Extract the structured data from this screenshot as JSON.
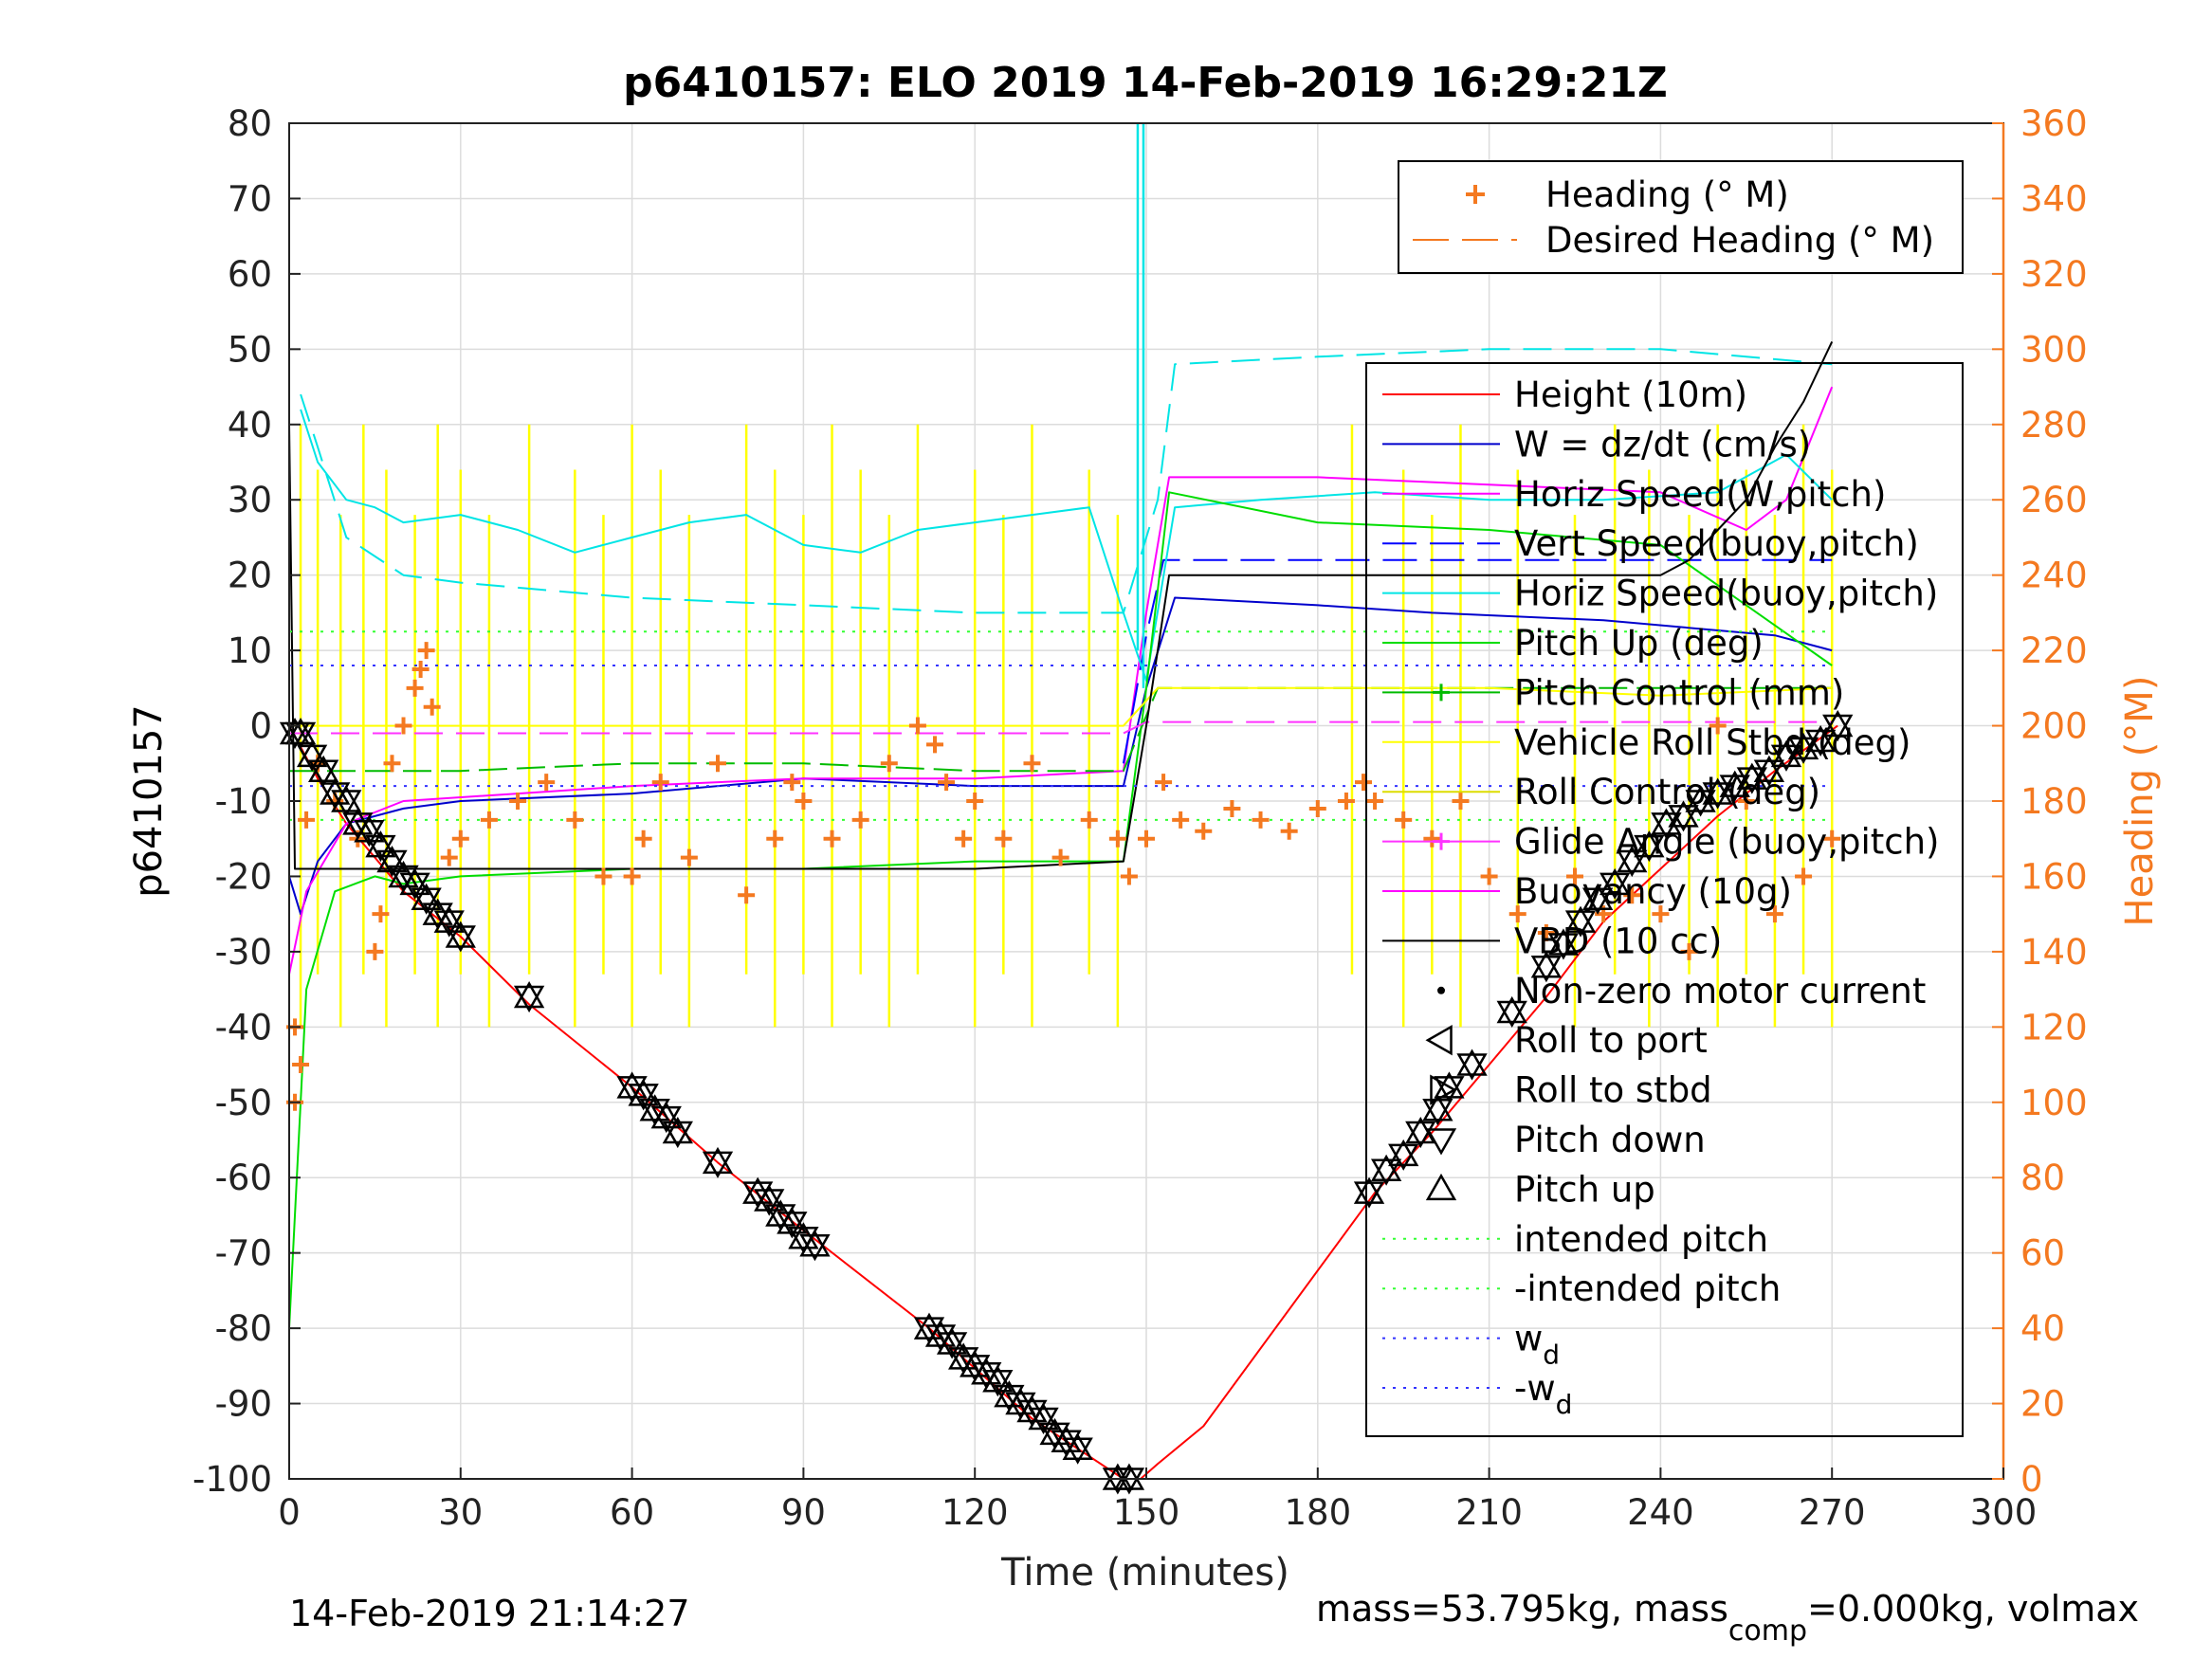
{
  "chart_data": {
    "type": "line",
    "title": "p6410157: ELO 2019 14-Feb-2019 16:29:21Z",
    "xlabel": "Time (minutes)",
    "ylabel": "p6410157",
    "y2label": "Heading (°M)",
    "xlim": [
      0,
      300
    ],
    "ylim": [
      -100,
      80
    ],
    "y2lim": [
      0,
      360
    ],
    "xticks": [
      "0",
      "30",
      "60",
      "90",
      "120",
      "150",
      "180",
      "210",
      "240",
      "270",
      "300"
    ],
    "yticks": [
      "80",
      "70",
      "60",
      "50",
      "40",
      "30",
      "20",
      "10",
      "0",
      "-10",
      "-20",
      "-30",
      "-40",
      "-50",
      "-60",
      "-70",
      "-80",
      "-90",
      "-100"
    ],
    "y2ticks": [
      "360",
      "340",
      "320",
      "300",
      "280",
      "260",
      "240",
      "220",
      "200",
      "180",
      "160",
      "140",
      "120",
      "100",
      "80",
      "60",
      "40",
      "20",
      "0"
    ],
    "grid": true,
    "colors": {
      "height": "#ff0000",
      "w": "#0000cc",
      "horiz_w": "#ff00ff",
      "vert_buoy": "#0000ff",
      "horiz_buoy": "#00e5e5",
      "pitch_up": "#00dd00",
      "pitch_control": "#00bb00",
      "roll": "#ffff00",
      "roll_control": "#dddd00",
      "glide": "#ff33ff",
      "buoyancy": "#ff00ff",
      "vbd": "#000000",
      "heading": "#f47920",
      "intended": "#33ff33",
      "wd": "#3333ff"
    },
    "legend_right": [
      {
        "name": "Heading (° M)"
      },
      {
        "name": "Desired Heading (° M)"
      }
    ],
    "legend_main": [
      {
        "name": "Height (10m)"
      },
      {
        "name": "W = dz/dt (cm/s)"
      },
      {
        "name": "Horiz Speed(W,pitch)"
      },
      {
        "name": "Vert Speed(buoy,pitch)"
      },
      {
        "name": "Horiz Speed(buoy,pitch)"
      },
      {
        "name": "Pitch Up (deg)"
      },
      {
        "name": "Pitch Control (mm)"
      },
      {
        "name": "Vehicle Roll Stbd (deg)"
      },
      {
        "name": "Roll Control (deg)"
      },
      {
        "name": "Glide Angle (buoy,pitch)"
      },
      {
        "name": "Buoyancy (10g)"
      },
      {
        "name": "VBD (10 cc)"
      },
      {
        "name": "Non-zero motor current"
      },
      {
        "name": "Roll to port"
      },
      {
        "name": "Roll to stbd"
      },
      {
        "name": "Pitch down"
      },
      {
        "name": "Pitch up"
      },
      {
        "name": "intended pitch"
      },
      {
        "name": "-intended pitch"
      },
      {
        "name": "w",
        "sub": "d"
      },
      {
        "name": "-w",
        "sub": "d"
      }
    ],
    "series": [
      {
        "name": "Height (10m)",
        "x": [
          0,
          5,
          10,
          20,
          30,
          42,
          60,
          75,
          90,
          112,
          130,
          146,
          149,
          152,
          160,
          190,
          200,
          210,
          220,
          230,
          240,
          250,
          260,
          271
        ],
        "y": [
          0,
          -7,
          -13,
          -22,
          -28,
          -37,
          -48,
          -58,
          -67,
          -80,
          -92,
          -100,
          -100,
          -98,
          -93,
          -62,
          -54,
          -45,
          -36,
          -26,
          -19,
          -12,
          -6,
          0
        ]
      },
      {
        "name": "W = dz/dt (cm/s)",
        "x": [
          0,
          2,
          5,
          10,
          20,
          30,
          60,
          90,
          120,
          146,
          150,
          155,
          180,
          200,
          230,
          260,
          270
        ],
        "y": [
          -20,
          -25,
          -18,
          -13,
          -11,
          -10,
          -9,
          -7,
          -8,
          -8,
          5,
          17,
          16,
          15,
          14,
          12,
          10
        ]
      },
      {
        "name": "Horiz Speed(W,pitch)",
        "x": [
          0,
          3,
          10,
          20,
          40,
          60,
          90,
          120,
          146,
          150,
          154,
          180,
          210,
          240,
          255,
          262,
          270
        ],
        "y": [
          -33,
          -22,
          -13,
          -10,
          -9,
          -8,
          -7,
          -7,
          -6,
          15,
          33,
          33,
          32,
          31,
          26,
          30,
          45
        ]
      },
      {
        "name": "Vert Speed(buoy,pitch)",
        "x": [
          146,
          150,
          153,
          270
        ],
        "y": [
          -5,
          12,
          22,
          22
        ]
      },
      {
        "name": "Horiz Speed(buoy,pitch) thin",
        "x": [
          2,
          5,
          10,
          20,
          30,
          60,
          90,
          120,
          146,
          152,
          155,
          180,
          210,
          240,
          270
        ],
        "y": [
          44,
          37,
          25,
          20,
          19,
          17,
          16,
          15,
          15,
          30,
          48,
          49,
          50,
          50,
          48
        ]
      },
      {
        "name": "Horiz Speed(buoy,pitch)",
        "x": [
          2,
          5,
          10,
          15,
          20,
          30,
          40,
          50,
          60,
          70,
          80,
          90,
          100,
          110,
          120,
          130,
          140,
          146,
          150,
          155,
          170,
          190,
          210,
          230,
          250,
          262,
          270
        ],
        "y": [
          42,
          35,
          30,
          29,
          27,
          28,
          26,
          23,
          25,
          27,
          28,
          24,
          23,
          26,
          27,
          28,
          29,
          15,
          6,
          29,
          30,
          31,
          30,
          30,
          31,
          36,
          30
        ]
      },
      {
        "name": "Pitch Up (deg)",
        "x": [
          0,
          3,
          8,
          15,
          20,
          30,
          60,
          90,
          120,
          146,
          150,
          154,
          180,
          210,
          240,
          270
        ],
        "y": [
          -80,
          -35,
          -22,
          -20,
          -21,
          -20,
          -19,
          -19,
          -18,
          -18,
          5,
          31,
          27,
          26,
          24,
          8
        ]
      },
      {
        "name": "Pitch Control (mm)",
        "x": [
          0,
          10,
          30,
          60,
          90,
          120,
          146,
          152,
          170,
          210,
          270
        ],
        "y": [
          -6,
          -6,
          -6,
          -5,
          -5,
          -6,
          -6,
          5,
          5,
          5,
          5
        ]
      },
      {
        "name": "Vehicle Roll Stbd (deg)",
        "x": [
          0,
          30,
          60,
          90,
          120,
          146,
          152,
          180,
          210,
          240,
          270
        ],
        "y": [
          0,
          0,
          0,
          0,
          0,
          0,
          5,
          5,
          5,
          4,
          5
        ]
      },
      {
        "name": "Glide Angle (buoy,pitch)",
        "x": [
          0,
          146,
          150,
          270
        ],
        "y": [
          -1,
          -1,
          0.5,
          0.5
        ]
      },
      {
        "name": "VBD (10 cc)",
        "x": [
          0,
          1,
          2,
          60,
          120,
          146,
          150,
          154,
          240,
          245,
          250,
          255,
          260,
          265,
          270
        ],
        "y": [
          40,
          -19,
          -19,
          -19,
          -19,
          -18,
          0,
          20,
          20,
          22,
          26,
          30,
          37,
          43,
          51
        ]
      },
      {
        "name": "intended pitch",
        "x": [
          0,
          270
        ],
        "y": [
          12.5,
          12.5
        ]
      },
      {
        "name": "-intended pitch",
        "x": [
          0,
          270
        ],
        "y": [
          -12.5,
          -12.5
        ]
      },
      {
        "name": "wd",
        "x": [
          0,
          270
        ],
        "y": [
          8,
          8
        ]
      },
      {
        "name": "-wd",
        "x": [
          0,
          270
        ],
        "y": [
          -8,
          -8
        ]
      }
    ],
    "heading_points": {
      "name": "Heading (° M)",
      "axis": "right",
      "x": [
        1,
        1,
        2,
        3,
        5,
        8,
        12,
        15,
        16,
        18,
        20,
        22,
        23,
        24,
        25,
        28,
        30,
        35,
        40,
        45,
        50,
        55,
        60,
        62,
        65,
        70,
        75,
        80,
        85,
        88,
        90,
        95,
        100,
        105,
        110,
        113,
        115,
        118,
        120,
        125,
        130,
        135,
        140,
        145,
        147,
        150,
        153,
        156,
        160,
        165,
        170,
        175,
        180,
        185,
        188,
        190,
        195,
        200,
        205,
        210,
        215,
        220,
        225,
        230,
        235,
        240,
        245,
        250,
        255,
        260,
        265,
        270
      ],
      "y": [
        120,
        100,
        110,
        175,
        190,
        180,
        170,
        140,
        150,
        190,
        200,
        210,
        215,
        220,
        205,
        165,
        170,
        175,
        180,
        185,
        175,
        160,
        160,
        170,
        185,
        165,
        190,
        155,
        170,
        185,
        180,
        170,
        175,
        190,
        200,
        195,
        185,
        170,
        180,
        170,
        190,
        165,
        175,
        170,
        160,
        170,
        185,
        175,
        172,
        178,
        175,
        172,
        178,
        180,
        185,
        180,
        175,
        170,
        180,
        160,
        150,
        145,
        160,
        150,
        155,
        150,
        140,
        200,
        180,
        150,
        160,
        170
      ]
    },
    "roll_spikes_x": [
      2,
      5,
      9,
      13,
      17,
      22,
      26,
      30,
      35,
      42,
      50,
      55,
      60,
      65,
      70,
      80,
      85,
      90,
      95,
      100,
      105,
      110,
      120,
      125,
      130,
      140,
      145,
      186,
      195,
      200,
      205,
      215,
      225,
      232,
      238,
      245,
      250,
      255,
      260,
      265,
      270
    ],
    "markers": {
      "x": [
        1,
        2,
        4,
        6,
        8,
        10,
        12,
        14,
        16,
        18,
        20,
        22,
        24,
        26,
        28,
        30,
        42,
        60,
        62,
        64,
        66,
        68,
        75,
        82,
        84,
        86,
        88,
        90,
        92,
        112,
        114,
        116,
        118,
        120,
        122,
        124,
        126,
        128,
        130,
        132,
        134,
        136,
        138,
        145,
        147,
        189,
        192,
        195,
        198,
        201,
        203,
        207,
        214,
        220,
        223,
        226,
        229,
        232,
        235,
        238,
        241,
        244,
        247,
        250,
        253,
        256,
        259,
        262,
        265,
        268,
        271
      ],
      "y": [
        -1,
        -1,
        -4,
        -6,
        -9,
        -10,
        -13,
        -14,
        -16,
        -18,
        -20,
        -21,
        -23,
        -25,
        -26,
        -28,
        -36,
        -48,
        -49,
        -51,
        -52,
        -54,
        -58,
        -62,
        -63,
        -65,
        -66,
        -68,
        -69,
        -80,
        -81,
        -82,
        -84,
        -85,
        -86,
        -87,
        -89,
        -90,
        -91,
        -92,
        -94,
        -95,
        -96,
        -100,
        -100,
        -62,
        -59,
        -57,
        -54,
        -51,
        -48,
        -45,
        -38,
        -32,
        -29,
        -26,
        -23,
        -21,
        -18,
        -16,
        -13,
        -12,
        -10,
        -9,
        -8,
        -7,
        -6,
        -4,
        -3,
        -2,
        0
      ]
    }
  },
  "footer": {
    "timestamp": "14-Feb-2019 21:14:27",
    "mass_text_a": "mass=53.795kg, mass",
    "mass_sub": "comp",
    "mass_text_b": "=0.000kg, volmax"
  }
}
